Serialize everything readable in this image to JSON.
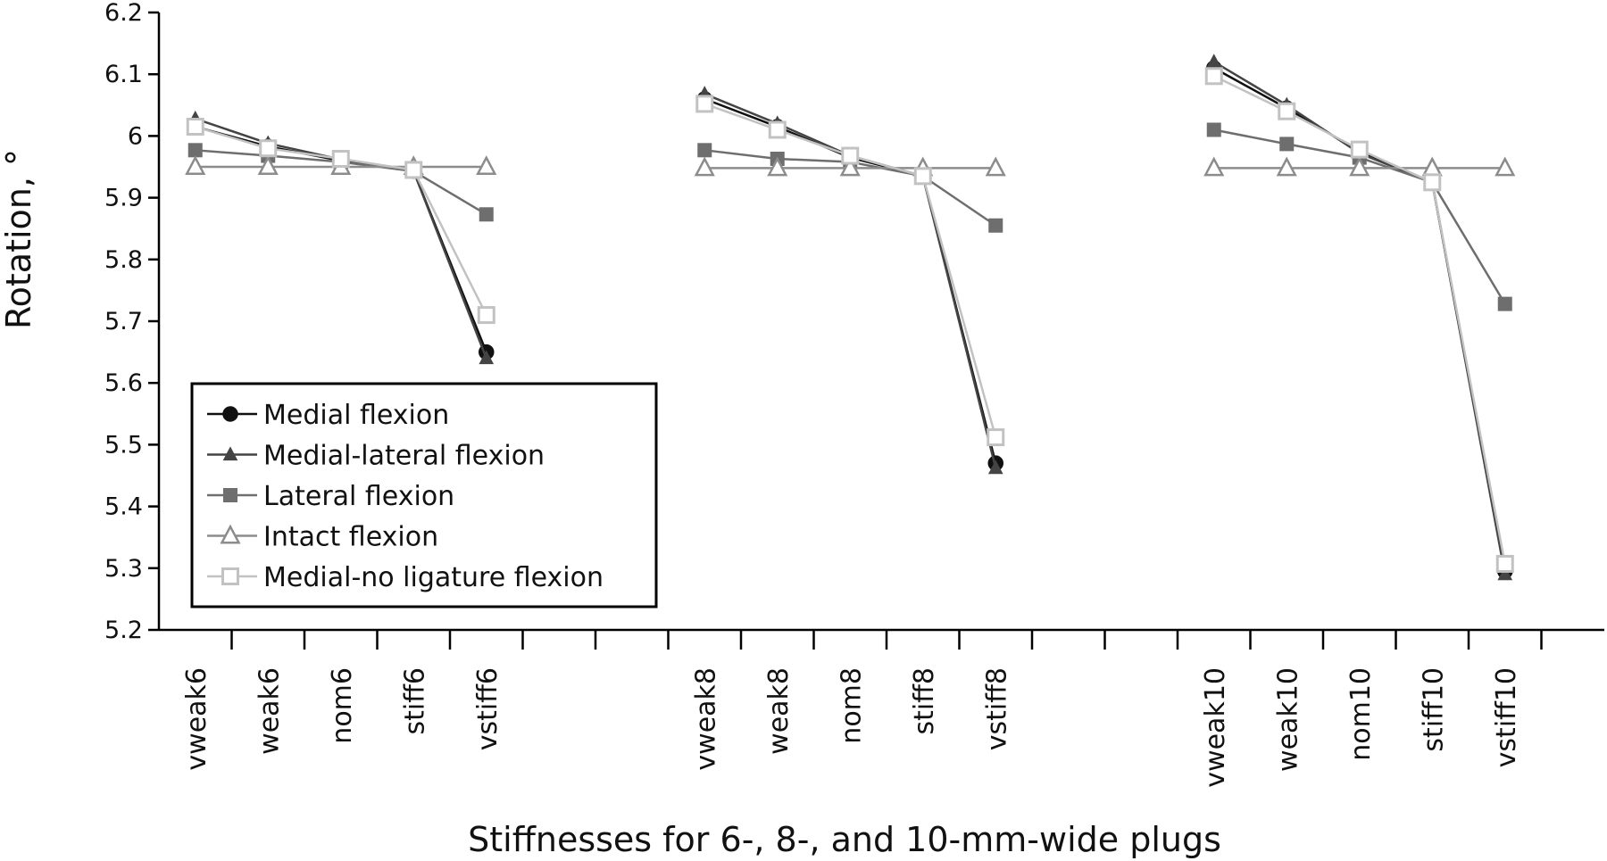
{
  "chart_data": {
    "type": "line",
    "ylabel": "Rotation, °",
    "xlabel": "Stiffnesses for 6-, 8-, and 10-mm-wide plugs",
    "ylim": [
      5.2,
      6.2
    ],
    "yticks": [
      5.2,
      5.3,
      5.4,
      5.5,
      5.6,
      5.7,
      5.8,
      5.9,
      6,
      6.1,
      6.2
    ],
    "ytick_labels": [
      "5.2",
      "5.3",
      "5.4",
      "5.5",
      "5.6",
      "5.7",
      "5.8",
      "5.9",
      "6",
      "6.1",
      "6.2"
    ],
    "groups": [
      {
        "categories": [
          "vweak6",
          "weak6",
          "nom6",
          "stiff6",
          "vstiff6"
        ]
      },
      {
        "categories": [
          "vweak8",
          "weak8",
          "nom8",
          "stiff8",
          "vstiff8"
        ]
      },
      {
        "categories": [
          "vweak10",
          "weak10",
          "nom10",
          "stiff10",
          "vstiff10"
        ]
      }
    ],
    "legend_position": "bottom-left",
    "series": [
      {
        "name": "Medial flexion",
        "color": "#111111",
        "marker": "circle",
        "fill": "solid",
        "values": [
          [
            6.015,
            5.983,
            5.96,
            5.943,
            5.65
          ],
          [
            6.06,
            6.015,
            5.965,
            5.935,
            5.47
          ],
          [
            6.11,
            6.045,
            5.975,
            5.925,
            5.295
          ]
        ]
      },
      {
        "name": "Medial-lateral flexion",
        "color": "#444444",
        "marker": "triangle",
        "fill": "solid",
        "values": [
          [
            6.028,
            5.988,
            5.962,
            5.943,
            5.64
          ],
          [
            6.068,
            6.02,
            5.968,
            5.935,
            5.462
          ],
          [
            6.12,
            6.05,
            5.972,
            5.925,
            5.29
          ]
        ]
      },
      {
        "name": "Lateral flexion",
        "color": "#6e6e6e",
        "marker": "square",
        "fill": "solid",
        "values": [
          [
            5.977,
            5.968,
            5.958,
            5.943,
            5.873
          ],
          [
            5.977,
            5.963,
            5.958,
            5.935,
            5.855
          ],
          [
            6.01,
            5.987,
            5.965,
            5.925,
            5.728
          ]
        ]
      },
      {
        "name": "Intact flexion",
        "color": "#8c8c8c",
        "marker": "triangle",
        "fill": "open",
        "values": [
          [
            5.95,
            5.95,
            5.95,
            5.95,
            5.95
          ],
          [
            5.948,
            5.948,
            5.948,
            5.948,
            5.948
          ],
          [
            5.948,
            5.948,
            5.948,
            5.948,
            5.948
          ]
        ]
      },
      {
        "name": "Medial-no ligature flexion",
        "color": "#c2c2c2",
        "marker": "square",
        "fill": "open",
        "values": [
          [
            6.015,
            5.98,
            5.963,
            5.945,
            5.71
          ],
          [
            6.052,
            6.01,
            5.968,
            5.935,
            5.512
          ],
          [
            6.097,
            6.04,
            5.978,
            5.925,
            5.307
          ]
        ]
      }
    ]
  }
}
